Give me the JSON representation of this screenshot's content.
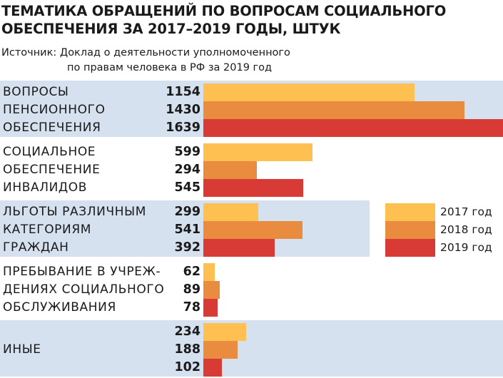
{
  "title_lines": [
    "ТЕМАТИКА ОБРАЩЕНИЙ ПО ВОПРОСАМ СОЦИАЛЬНОГО",
    "ОБЕСПЕЧЕНИЯ ЗА 2017–2019 ГОДЫ, ШТУК"
  ],
  "source_lines": [
    "Источник: Доклад о деятельности уполномоченного",
    "по правам человека в РФ за 2019 год"
  ],
  "colors": {
    "2017": "#fec050",
    "2018": "#ea8c40",
    "2019": "#d83a35",
    "band": "#d5e1ee"
  },
  "chart_data": {
    "type": "bar",
    "orientation": "horizontal",
    "title": "ТЕМАТИКА ОБРАЩЕНИЙ ПО ВОПРОСАМ СОЦИАЛЬНОГО ОБЕСПЕЧЕНИЯ ЗА 2017–2019 ГОДЫ, ШТУК",
    "categories": [
      "ВОПРОСЫ ПЕНСИОННОГО ОБЕСПЕЧЕНИЯ",
      "СОЦИАЛЬНОЕ ОБЕСПЕЧЕНИЕ ИНВАЛИДОВ",
      "ЛЬГОТЫ РАЗЛИЧНЫМ КАТЕГОРИЯМ ГРАЖДАН",
      "ПРЕБЫВАНИЕ В УЧРЕЖДЕНИЯХ СОЦИАЛЬНОГО ОБСЛУЖИВАНИЯ",
      "ИНЫЕ"
    ],
    "category_label_lines": [
      [
        "ВОПРОСЫ",
        "ПЕНСИОННОГО",
        "ОБЕСПЕЧЕНИЯ"
      ],
      [
        "СОЦИАЛЬНОЕ",
        "ОБЕСПЕЧЕНИЕ",
        "ИНВАЛИДОВ"
      ],
      [
        "ЛЬГОТЫ РАЗЛИЧНЫМ",
        "КАТЕГОРИЯМ",
        "ГРАЖДАН"
      ],
      [
        "ПРЕБЫВАНИЕ В УЧРЕЖ-",
        "ДЕНИЯХ СОЦИАЛЬНОГО",
        "ОБСЛУЖИВАНИЯ"
      ],
      [
        "ИНЫЕ"
      ]
    ],
    "series": [
      {
        "name": "2017 год",
        "values": [
          1154,
          599,
          299,
          62,
          234
        ]
      },
      {
        "name": "2018 год",
        "values": [
          1430,
          294,
          541,
          89,
          188
        ]
      },
      {
        "name": "2019 год",
        "values": [
          1639,
          545,
          392,
          78,
          102
        ]
      }
    ],
    "xlim": [
      0,
      1639
    ],
    "data_labels": true,
    "legend_position": "right-middle",
    "grid": false,
    "xlabel": "",
    "ylabel": ""
  }
}
